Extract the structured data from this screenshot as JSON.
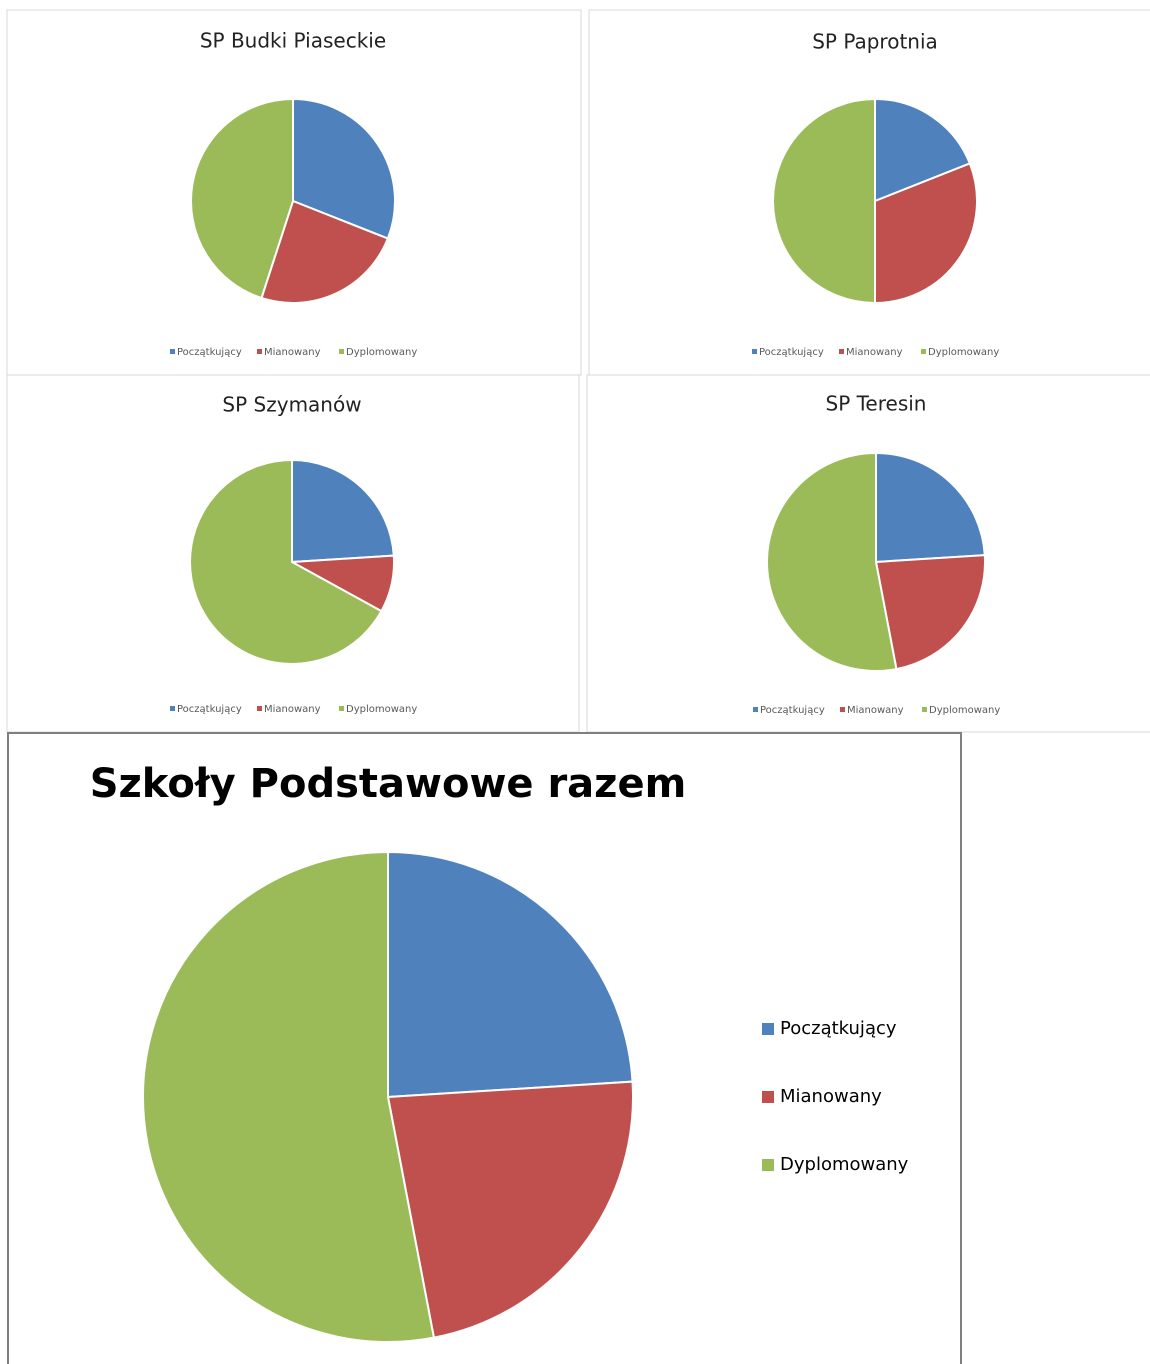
{
  "chart_data": [
    {
      "type": "pie",
      "title": "SP Budki Piaseckie",
      "categories": [
        "Początkujący",
        "Mianowany",
        "Dyplomowany"
      ],
      "values": [
        31,
        24,
        45
      ],
      "colors": [
        "#4f81bd",
        "#c0504d",
        "#9bbb59"
      ],
      "legend": "bottom"
    },
    {
      "type": "pie",
      "title": "SP Paprotnia",
      "categories": [
        "Początkujący",
        "Mianowany",
        "Dyplomowany"
      ],
      "values": [
        19,
        31,
        50
      ],
      "colors": [
        "#4f81bd",
        "#c0504d",
        "#9bbb59"
      ],
      "legend": "bottom"
    },
    {
      "type": "pie",
      "title": "SP Szymanów",
      "categories": [
        "Początkujący",
        "Mianowany",
        "Dyplomowany"
      ],
      "values": [
        24,
        9,
        67
      ],
      "colors": [
        "#4f81bd",
        "#c0504d",
        "#9bbb59"
      ],
      "legend": "bottom"
    },
    {
      "type": "pie",
      "title": "SP Teresin",
      "categories": [
        "Początkujący",
        "Mianowany",
        "Dyplomowany"
      ],
      "values": [
        24,
        23,
        53
      ],
      "colors": [
        "#4f81bd",
        "#c0504d",
        "#9bbb59"
      ],
      "legend": "bottom"
    },
    {
      "type": "pie",
      "title": "Szkoły Podstawowe razem",
      "categories": [
        "Początkujący",
        "Mianowany",
        "Dyplomowany"
      ],
      "values": [
        24,
        23,
        53
      ],
      "colors": [
        "#4f81bd",
        "#c0504d",
        "#9bbb59"
      ],
      "legend": "right"
    }
  ]
}
